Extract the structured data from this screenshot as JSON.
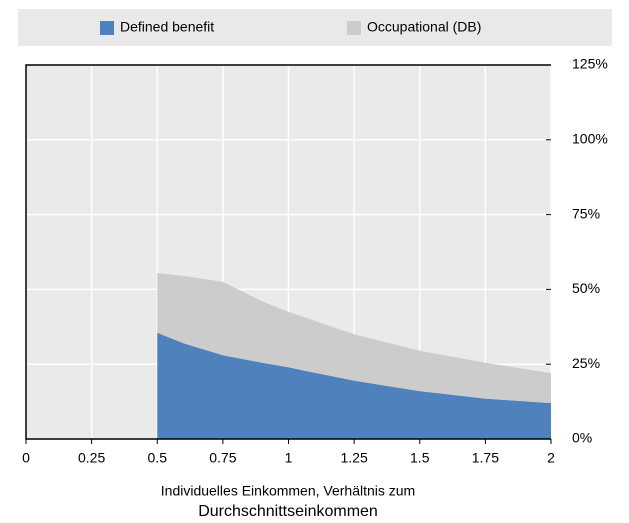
{
  "chart_data": {
    "type": "area",
    "stacked": true,
    "x": [
      0.5,
      0.6,
      0.75,
      0.9,
      1,
      1.05,
      1.25,
      1.5,
      1.75,
      2
    ],
    "series": [
      {
        "name": "Defined benefit",
        "color": "#4f81bd",
        "values": [
          35.5,
          32,
          28,
          25.5,
          24,
          23,
          19.5,
          16,
          13.5,
          12
        ]
      },
      {
        "name": "Occupational (DB)",
        "color": "#cccccc",
        "values": [
          20,
          22.5,
          24.5,
          20.5,
          18.5,
          18,
          15.5,
          13.5,
          12,
          10
        ]
      }
    ],
    "xlim": [
      0,
      2
    ],
    "xticks": [
      0,
      0.25,
      0.5,
      0.75,
      1,
      1.25,
      1.5,
      1.75,
      2
    ],
    "ylim": [
      0,
      125
    ],
    "yticks": [
      {
        "value": 0,
        "label": "0%"
      },
      {
        "value": 25,
        "label": "25%"
      },
      {
        "value": 50,
        "label": "50%"
      },
      {
        "value": 75,
        "label": "75%"
      },
      {
        "value": 100,
        "label": "100%"
      },
      {
        "value": 125,
        "label": "125%"
      }
    ],
    "xlabel": [
      "Individuelles Einkommen, Verhältnis zum",
      "Durchschnittseinkommen"
    ],
    "grid": true,
    "legend": "top"
  }
}
